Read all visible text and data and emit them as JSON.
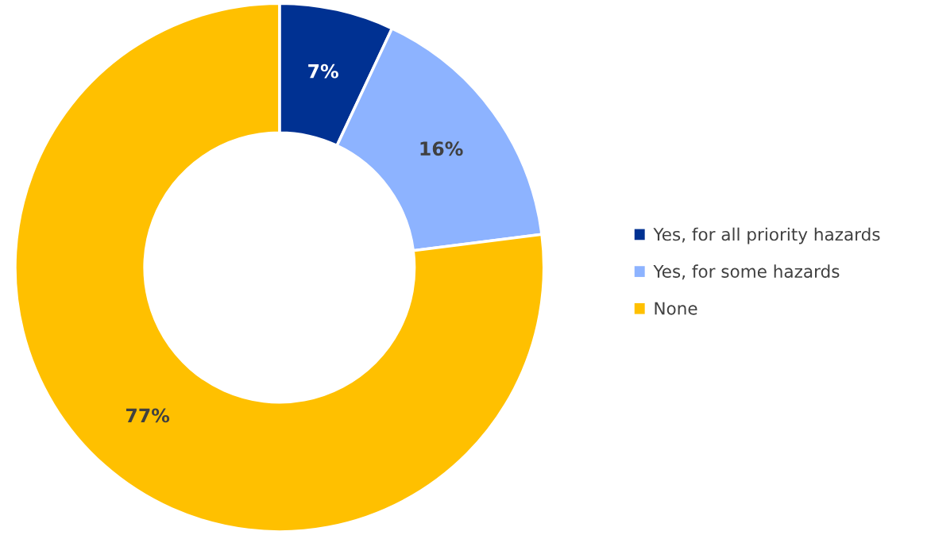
{
  "chart_data": {
    "type": "donut",
    "categories": [
      "Yes, for all priority hazards",
      "Yes, for some hazards",
      "None"
    ],
    "values": [
      7,
      16,
      77
    ],
    "colors": [
      "#003192",
      "#8db3ff",
      "#ffc000"
    ],
    "value_labels": [
      "7%",
      "16%",
      "77%"
    ],
    "legend": "right"
  }
}
